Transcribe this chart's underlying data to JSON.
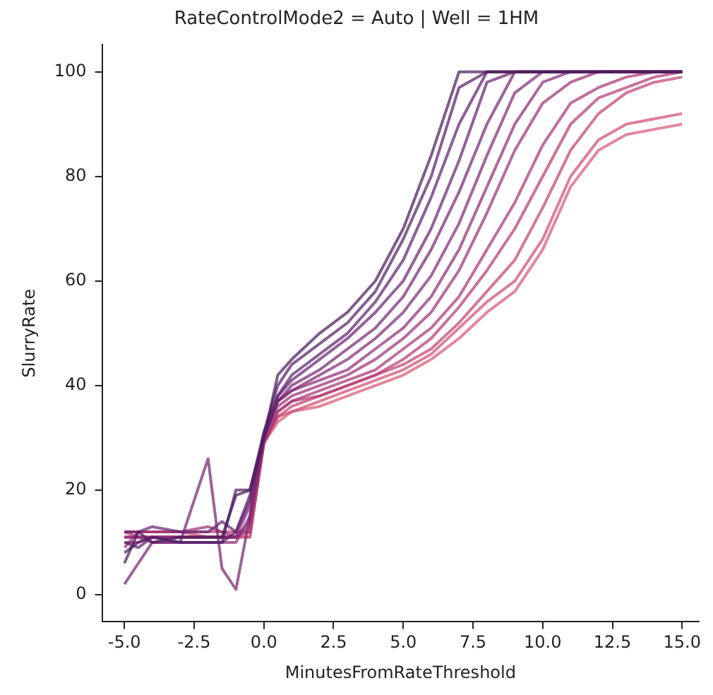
{
  "chart_data": {
    "type": "line",
    "title": "RateControlMode2 = Auto | Well = 1HM",
    "xlabel": "MinutesFromRateThreshold",
    "ylabel": "SlurryRate",
    "x": [
      -5,
      -4.5,
      -4,
      -3,
      -2,
      -1.5,
      -1,
      -0.5,
      0,
      0.5,
      1,
      2,
      3,
      4,
      5,
      6,
      7,
      8,
      9,
      10,
      11,
      12,
      13,
      14,
      15
    ],
    "xlim": [
      -5.8,
      15.6
    ],
    "xticks": [
      {
        "value": -5,
        "label": "-5.0"
      },
      {
        "value": -2.5,
        "label": "-2.5"
      },
      {
        "value": 0,
        "label": "0.0"
      },
      {
        "value": 2.5,
        "label": "2.5"
      },
      {
        "value": 5,
        "label": "5.0"
      },
      {
        "value": 7.5,
        "label": "7.5"
      },
      {
        "value": 10,
        "label": "10.0"
      },
      {
        "value": 12.5,
        "label": "12.5"
      },
      {
        "value": 15,
        "label": "15.0"
      }
    ],
    "ylim": [
      -5.2,
      105.2
    ],
    "yticks": [
      0,
      20,
      40,
      60,
      80,
      100
    ],
    "grid": false,
    "legend": false,
    "marker": "none",
    "line_style": "solid",
    "series": [
      {
        "color": "#4b1d5c",
        "values": [
          6,
          12,
          10,
          11,
          11,
          11,
          19,
          20,
          30,
          42,
          45,
          50,
          54,
          60,
          70,
          84,
          100,
          100,
          100,
          100,
          100,
          100,
          100,
          100,
          100
        ]
      },
      {
        "color": "#55206a",
        "values": [
          8,
          10,
          11,
          10,
          10,
          10,
          20,
          20,
          31,
          40,
          44,
          48,
          52,
          58,
          68,
          80,
          97,
          100,
          100,
          100,
          100,
          100,
          100,
          100,
          100
        ]
      },
      {
        "color": "#5e2270",
        "values": [
          10,
          9,
          11,
          10,
          10,
          10,
          12,
          19,
          30,
          38,
          42,
          46,
          50,
          56,
          64,
          76,
          90,
          100,
          100,
          100,
          100,
          100,
          100,
          100,
          100
        ]
      },
      {
        "color": "#6a2473",
        "values": [
          12,
          12,
          13,
          12,
          12,
          14,
          12,
          18,
          31,
          38,
          41,
          45,
          49,
          54,
          60,
          70,
          83,
          98,
          100,
          100,
          100,
          100,
          100,
          100,
          100
        ]
      },
      {
        "color": "#762775",
        "values": [
          2,
          6,
          10,
          10,
          26,
          5,
          1,
          15,
          30,
          37,
          40,
          43,
          47,
          51,
          57,
          66,
          77,
          90,
          100,
          100,
          100,
          100,
          100,
          100,
          100
        ]
      },
      {
        "color": "#822a76",
        "values": [
          10,
          10,
          11,
          11,
          11,
          11,
          11,
          17,
          30,
          37,
          39,
          42,
          45,
          49,
          54,
          61,
          71,
          84,
          96,
          100,
          100,
          100,
          100,
          100,
          100
        ]
      },
      {
        "color": "#8f2d77",
        "values": [
          11,
          11,
          10,
          10,
          10,
          10,
          10,
          15,
          30,
          37,
          39,
          41,
          43,
          47,
          51,
          57,
          66,
          78,
          90,
          98,
          100,
          100,
          100,
          100,
          100
        ]
      },
      {
        "color": "#9c3177",
        "values": [
          9,
          12,
          12,
          12,
          13,
          12,
          11,
          14,
          30,
          36,
          38,
          40,
          42,
          45,
          49,
          54,
          62,
          73,
          85,
          94,
          98,
          100,
          100,
          100,
          100
        ]
      },
      {
        "color": "#a93576",
        "values": [
          12,
          11,
          11,
          11,
          11,
          11,
          11,
          13,
          29,
          35,
          37,
          39,
          41,
          43,
          47,
          51,
          57,
          66,
          75,
          86,
          94,
          97,
          99,
          100,
          100
        ]
      },
      {
        "color": "#b63a75",
        "values": [
          11,
          11,
          11,
          11,
          11,
          11,
          11,
          12,
          29,
          35,
          37,
          38,
          40,
          42,
          45,
          49,
          55,
          62,
          70,
          80,
          90,
          95,
          97,
          99,
          100
        ]
      },
      {
        "color": "#c34273",
        "values": [
          12,
          12,
          12,
          12,
          12,
          12,
          12,
          12,
          29,
          34,
          36,
          38,
          40,
          42,
          44,
          47,
          52,
          58,
          64,
          74,
          85,
          92,
          96,
          98,
          99
        ]
      },
      {
        "color": "#d04d72",
        "values": [
          12,
          12,
          12,
          12,
          11,
          11,
          11,
          11,
          29,
          34,
          35,
          37,
          39,
          41,
          43,
          46,
          51,
          56,
          60,
          68,
          80,
          87,
          90,
          91,
          92
        ]
      },
      {
        "color": "#d85a74",
        "values": [
          11,
          11,
          11,
          11,
          11,
          11,
          11,
          11,
          29,
          33,
          35,
          36,
          38,
          40,
          42,
          45,
          49,
          54,
          58,
          66,
          78,
          85,
          88,
          89,
          90
        ]
      }
    ]
  }
}
